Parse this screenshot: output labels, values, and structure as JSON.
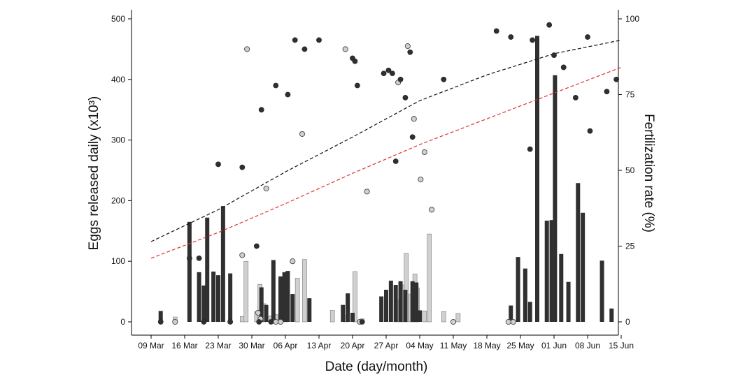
{
  "chart_data": {
    "type": "bar+scatter",
    "xlabel": "Date (day/month)",
    "ylabel_left": "Eggs released daily (x10³)",
    "ylabel_right": "Fertilization rate (%)",
    "x_ticks": [
      "09 Mar",
      "16 Mar",
      "23 Mar",
      "30 Mar",
      "06 Apr",
      "13 Apr",
      "20 Apr",
      "27 Apr",
      "04 May",
      "11 May",
      "18 May",
      "25 May",
      "01 Jun",
      "08 Jun",
      "15 Jun"
    ],
    "x_tick_days": [
      0,
      7,
      14,
      21,
      28,
      35,
      42,
      49,
      56,
      63,
      70,
      77,
      84,
      91,
      98
    ],
    "xlim_days": [
      -3,
      101
    ],
    "ylim_left": [
      0,
      500
    ],
    "ylim_right": [
      0,
      100
    ],
    "y_ticks_left": [
      0,
      100,
      200,
      300,
      400,
      500
    ],
    "y_ticks_right": [
      0,
      25,
      50,
      75,
      100
    ],
    "colors": {
      "dark": "#303030",
      "light": "#d0d0d0",
      "black_curve": "#111111",
      "red_curve": "#e0302a"
    },
    "bars_dark": [
      [
        2,
        18
      ],
      [
        8,
        165
      ],
      [
        10,
        82
      ],
      [
        11,
        60
      ],
      [
        11.7,
        172
      ],
      [
        13,
        83
      ],
      [
        14,
        77
      ],
      [
        15,
        191
      ],
      [
        16.5,
        80
      ],
      [
        23,
        57
      ],
      [
        24,
        28
      ],
      [
        25.5,
        102
      ],
      [
        27,
        75
      ],
      [
        27.8,
        82
      ],
      [
        28.5,
        84
      ],
      [
        29.5,
        46
      ],
      [
        33,
        39
      ],
      [
        40,
        28
      ],
      [
        41,
        47
      ],
      [
        42,
        15
      ],
      [
        48,
        42
      ],
      [
        49,
        53
      ],
      [
        50,
        68
      ],
      [
        51,
        61
      ],
      [
        52,
        67
      ],
      [
        53,
        53
      ],
      [
        54.5,
        67
      ],
      [
        55.3,
        65
      ],
      [
        56,
        19
      ],
      [
        75,
        27
      ],
      [
        76.5,
        107
      ],
      [
        78,
        88
      ],
      [
        79,
        33
      ],
      [
        80.5,
        472
      ],
      [
        82.5,
        167
      ],
      [
        83.5,
        168
      ],
      [
        84.2,
        407
      ],
      [
        85.5,
        112
      ],
      [
        87,
        66
      ],
      [
        89,
        229
      ],
      [
        90,
        180
      ],
      [
        94,
        101
      ],
      [
        96,
        22
      ]
    ],
    "bars_light": [
      [
        5,
        8
      ],
      [
        19,
        9
      ],
      [
        19.8,
        100
      ],
      [
        22,
        17
      ],
      [
        22.7,
        62
      ],
      [
        23.5,
        30
      ],
      [
        25,
        10
      ],
      [
        26,
        12
      ],
      [
        27,
        70
      ],
      [
        28,
        32
      ],
      [
        30.5,
        72
      ],
      [
        32,
        103
      ],
      [
        37.8,
        19
      ],
      [
        40.5,
        11
      ],
      [
        42.5,
        83
      ],
      [
        44,
        5
      ],
      [
        51.2,
        36
      ],
      [
        52.3,
        61
      ],
      [
        53.2,
        113
      ],
      [
        54.2,
        46
      ],
      [
        55,
        79
      ],
      [
        55.5,
        56
      ],
      [
        57,
        18
      ],
      [
        58,
        145
      ],
      [
        61,
        17
      ],
      [
        64,
        14
      ]
    ],
    "fert_dark": [
      [
        2,
        0
      ],
      [
        8,
        21
      ],
      [
        10,
        21
      ],
      [
        11,
        0
      ],
      [
        14,
        52
      ],
      [
        16.5,
        0
      ],
      [
        19,
        51
      ],
      [
        22,
        25
      ],
      [
        22.5,
        0
      ],
      [
        23,
        70
      ],
      [
        25,
        0
      ],
      [
        26,
        78
      ],
      [
        28.5,
        75
      ],
      [
        30,
        93
      ],
      [
        32,
        90
      ],
      [
        35,
        93
      ],
      [
        42,
        87
      ],
      [
        42.5,
        86
      ],
      [
        43,
        78
      ],
      [
        44,
        0
      ],
      [
        48.5,
        82
      ],
      [
        49.5,
        83
      ],
      [
        50.3,
        82
      ],
      [
        51,
        53
      ],
      [
        52,
        80
      ],
      [
        53,
        74
      ],
      [
        54,
        89
      ],
      [
        54.5,
        61
      ],
      [
        61,
        80
      ],
      [
        72,
        96
      ],
      [
        75,
        94
      ],
      [
        79,
        57
      ],
      [
        79.5,
        93
      ],
      [
        83,
        98
      ],
      [
        84,
        88
      ],
      [
        86,
        84
      ],
      [
        88.5,
        74
      ],
      [
        91,
        94
      ],
      [
        91.5,
        63
      ],
      [
        95,
        76
      ],
      [
        97,
        80
      ]
    ],
    "fert_light": [
      [
        5,
        0
      ],
      [
        19,
        22
      ],
      [
        20,
        90
      ],
      [
        22.3,
        3
      ],
      [
        22.8,
        1
      ],
      [
        24,
        44
      ],
      [
        26,
        0
      ],
      [
        27,
        0
      ],
      [
        29.5,
        20
      ],
      [
        31.5,
        62
      ],
      [
        40.5,
        90
      ],
      [
        43.5,
        0
      ],
      [
        45,
        43
      ],
      [
        51.5,
        79
      ],
      [
        53.5,
        91
      ],
      [
        54.8,
        67
      ],
      [
        56.2,
        47
      ],
      [
        57,
        56
      ],
      [
        58.5,
        37
      ],
      [
        63,
        0
      ],
      [
        74.5,
        0
      ],
      [
        75.5,
        0
      ]
    ],
    "curve_black": [
      [
        0,
        26.5
      ],
      [
        14,
        37
      ],
      [
        28,
        49.5
      ],
      [
        42,
        61
      ],
      [
        56,
        73
      ],
      [
        70,
        81.5
      ],
      [
        84,
        88.5
      ],
      [
        98,
        93
      ]
    ],
    "curve_red": [
      [
        0,
        21
      ],
      [
        14,
        29.5
      ],
      [
        28,
        39
      ],
      [
        42,
        49
      ],
      [
        56,
        58.5
      ],
      [
        70,
        67
      ],
      [
        84,
        75.5
      ],
      [
        98,
        84
      ]
    ]
  }
}
